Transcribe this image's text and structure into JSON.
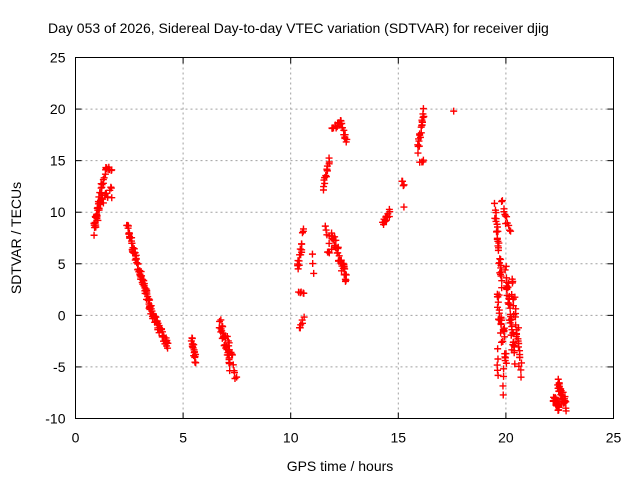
{
  "chart_data": {
    "type": "scatter",
    "title": "Day 053 of 2026, Sidereal Day-to-day VTEC variation (SDTVAR) for receiver djig",
    "xlabel": "GPS time / hours",
    "ylabel": "SDTVAR / TECUs",
    "xlim": [
      0,
      25
    ],
    "ylim": [
      -10,
      25
    ],
    "xticks": [
      "0",
      "5",
      "10",
      "15",
      "20",
      "25"
    ],
    "yticks": [
      "-10",
      "-5",
      "0",
      "5",
      "10",
      "15",
      "20",
      "25"
    ],
    "grid": true,
    "marker": "plus",
    "series_color": "#ff0000",
    "segments": [
      {
        "x0": 0.85,
        "y0": 8.0,
        "x1": 1.0,
        "y1": 10.0,
        "n": 14,
        "jitter": 0.6
      },
      {
        "x0": 1.0,
        "y0": 9.5,
        "x1": 1.2,
        "y1": 12.5,
        "n": 14,
        "jitter": 0.8
      },
      {
        "x0": 1.2,
        "y0": 12.5,
        "x1": 1.45,
        "y1": 14.3,
        "n": 10,
        "jitter": 0.3
      },
      {
        "x0": 1.45,
        "y0": 14.3,
        "x1": 1.7,
        "y1": 14.0,
        "n": 6,
        "jitter": 0.2
      },
      {
        "x0": 1.0,
        "y0": 10.5,
        "x1": 1.7,
        "y1": 12.0,
        "n": 18,
        "jitter": 0.6
      },
      {
        "x0": 2.4,
        "y0": 8.7,
        "x1": 3.0,
        "y1": 4.0,
        "n": 40,
        "jitter": 0.4
      },
      {
        "x0": 3.0,
        "y0": 4.0,
        "x1": 3.6,
        "y1": 0.0,
        "n": 40,
        "jitter": 0.4
      },
      {
        "x0": 3.6,
        "y0": 0.0,
        "x1": 4.3,
        "y1": -3.0,
        "n": 36,
        "jitter": 0.4
      },
      {
        "x0": 5.4,
        "y0": -2.0,
        "x1": 5.6,
        "y1": -4.5,
        "n": 18,
        "jitter": 0.4
      },
      {
        "x0": 6.7,
        "y0": -0.5,
        "x1": 7.2,
        "y1": -5.0,
        "n": 30,
        "jitter": 0.6
      },
      {
        "x0": 7.0,
        "y0": -1.5,
        "x1": 7.45,
        "y1": -6.0,
        "n": 14,
        "jitter": 0.5
      },
      {
        "x0": 10.3,
        "y0": 4.5,
        "x1": 10.6,
        "y1": 8.0,
        "n": 16,
        "jitter": 0.5
      },
      {
        "x0": 10.4,
        "y0": 2.2,
        "x1": 10.6,
        "y1": 2.2,
        "n": 5,
        "jitter": 0.1
      },
      {
        "x0": 10.4,
        "y0": -1.2,
        "x1": 10.6,
        "y1": -0.3,
        "n": 6,
        "jitter": 0.2
      },
      {
        "x0": 11.0,
        "y0": 5.8,
        "x1": 11.1,
        "y1": 4.0,
        "n": 3,
        "jitter": 0.2
      },
      {
        "x0": 11.5,
        "y0": 12.3,
        "x1": 11.8,
        "y1": 15.2,
        "n": 14,
        "jitter": 0.2
      },
      {
        "x0": 11.6,
        "y0": 8.7,
        "x1": 11.8,
        "y1": 7.2,
        "n": 5,
        "jitter": 0.3
      },
      {
        "x0": 11.7,
        "y0": 6.0,
        "x1": 11.9,
        "y1": 6.2,
        "n": 4,
        "jitter": 0.2
      },
      {
        "x0": 11.9,
        "y0": 18.0,
        "x1": 12.3,
        "y1": 18.8,
        "n": 10,
        "jitter": 0.2
      },
      {
        "x0": 12.3,
        "y0": 18.8,
        "x1": 12.6,
        "y1": 16.7,
        "n": 12,
        "jitter": 0.2
      },
      {
        "x0": 11.9,
        "y0": 8.0,
        "x1": 12.6,
        "y1": 3.5,
        "n": 40,
        "jitter": 0.6
      },
      {
        "x0": 14.3,
        "y0": 9.0,
        "x1": 14.6,
        "y1": 10.0,
        "n": 14,
        "jitter": 0.4
      },
      {
        "x0": 15.2,
        "y0": 13.0,
        "x1": 15.3,
        "y1": 12.5,
        "n": 4,
        "jitter": 0.2
      },
      {
        "x0": 15.3,
        "y0": 10.5,
        "x1": 15.3,
        "y1": 10.5,
        "n": 1,
        "jitter": 0.0
      },
      {
        "x0": 15.9,
        "y0": 16.0,
        "x1": 16.2,
        "y1": 20.0,
        "n": 20,
        "jitter": 0.3
      },
      {
        "x0": 16.0,
        "y0": 14.8,
        "x1": 16.2,
        "y1": 15.0,
        "n": 4,
        "jitter": 0.1
      },
      {
        "x0": 17.6,
        "y0": 19.8,
        "x1": 17.6,
        "y1": 19.8,
        "n": 1,
        "jitter": 0.0
      },
      {
        "x0": 19.5,
        "y0": 10.5,
        "x1": 19.8,
        "y1": 3.0,
        "n": 30,
        "jitter": 0.6
      },
      {
        "x0": 19.6,
        "y0": 2.0,
        "x1": 20.0,
        "y1": -4.0,
        "n": 30,
        "jitter": 1.2
      },
      {
        "x0": 19.6,
        "y0": -3.5,
        "x1": 19.6,
        "y1": -6.0,
        "n": 5,
        "jitter": 0.3
      },
      {
        "x0": 19.9,
        "y0": -5.0,
        "x1": 19.9,
        "y1": -8.0,
        "n": 4,
        "jitter": 0.3
      },
      {
        "x0": 19.8,
        "y0": 11.0,
        "x1": 20.2,
        "y1": 8.0,
        "n": 12,
        "jitter": 0.5
      },
      {
        "x0": 20.0,
        "y0": 4.0,
        "x1": 20.4,
        "y1": -4.0,
        "n": 40,
        "jitter": 1.4
      },
      {
        "x0": 20.3,
        "y0": 3.0,
        "x1": 20.7,
        "y1": -5.5,
        "n": 30,
        "jitter": 1.2
      },
      {
        "x0": 22.2,
        "y0": -8.0,
        "x1": 22.5,
        "y1": -9.0,
        "n": 30,
        "jitter": 0.4
      },
      {
        "x0": 22.4,
        "y0": -6.5,
        "x1": 22.8,
        "y1": -8.8,
        "n": 30,
        "jitter": 0.5
      }
    ]
  }
}
